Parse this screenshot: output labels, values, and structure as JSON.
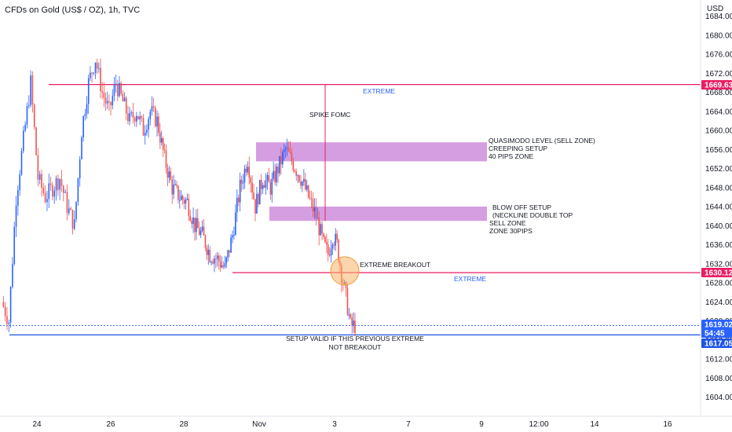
{
  "header": {
    "title": "CFDs on Gold (US$ / OZ), 1h, TVC",
    "currency": "USD"
  },
  "colors": {
    "up": "#2962ff",
    "down": "#ef5350",
    "extreme_line": "#e91e63",
    "support_line": "#1e53e5",
    "zone_fill": "#c77dd6",
    "circle_fill": "#f7b267"
  },
  "chart_data": {
    "type": "candlestick",
    "y_axis": {
      "ticks": [
        "1604.00",
        "1608.00",
        "1612.00",
        "1616.00",
        "1620.00",
        "1624.00",
        "1628.00",
        "1632.00",
        "1636.00",
        "1640.00",
        "1644.00",
        "1648.00",
        "1652.00",
        "1656.00",
        "1660.00",
        "1664.00",
        "1668.00",
        "1672.00",
        "1676.00",
        "1680.00",
        "1684.00"
      ],
      "range": [
        1602,
        1686
      ]
    },
    "x_axis": {
      "ticks": [
        "24",
        "26",
        "28",
        "Nov",
        "3",
        "7",
        "9",
        "12:00",
        "14",
        "16"
      ]
    },
    "price_path": [
      [
        "24",
        1624
      ],
      [
        "24",
        1620
      ],
      [
        "24",
        1646
      ],
      [
        "24",
        1658
      ],
      [
        "24",
        1670
      ],
      [
        "24",
        1650
      ],
      [
        "24",
        1646
      ],
      [
        "24",
        1648
      ],
      [
        "24",
        1650
      ],
      [
        "24",
        1644
      ],
      [
        "24",
        1640
      ],
      [
        "26",
        1660
      ],
      [
        "26",
        1670
      ],
      [
        "26",
        1675
      ],
      [
        "26",
        1668
      ],
      [
        "26",
        1664
      ],
      [
        "26",
        1670
      ],
      [
        "26",
        1666
      ],
      [
        "26",
        1662
      ],
      [
        "26",
        1664
      ],
      [
        "26",
        1660
      ],
      [
        "26",
        1664
      ],
      [
        "28",
        1662
      ],
      [
        "28",
        1654
      ],
      [
        "28",
        1648
      ],
      [
        "28",
        1646
      ],
      [
        "28",
        1645
      ],
      [
        "28",
        1640
      ],
      [
        "28",
        1638
      ],
      [
        "28",
        1634
      ],
      [
        "28",
        1633
      ],
      [
        "28",
        1631
      ],
      [
        "Nov",
        1638
      ],
      [
        "Nov",
        1648
      ],
      [
        "Nov",
        1654
      ],
      [
        "Nov",
        1644
      ],
      [
        "Nov",
        1650
      ],
      [
        "Nov",
        1648
      ],
      [
        "Nov",
        1652
      ],
      [
        "Nov",
        1656
      ],
      [
        "Nov",
        1653
      ],
      [
        "Nov",
        1650
      ],
      [
        "Nov",
        1646
      ],
      [
        "Nov",
        1642
      ],
      [
        "3",
        1636
      ],
      [
        "3",
        1634
      ],
      [
        "3",
        1638
      ],
      [
        "3",
        1636
      ],
      [
        "3",
        1630
      ],
      [
        "3",
        1625
      ],
      [
        "3",
        1619
      ]
    ],
    "horizontal_lines": [
      {
        "price": 1669.63,
        "label": "EXTREME",
        "color": "#e91e63"
      },
      {
        "price": 1630.12,
        "label": "EXTREME",
        "color": "#e91e63"
      },
      {
        "price": 1617.05,
        "color": "#1e53e5"
      },
      {
        "price": 1619.02,
        "color": "#2962ff",
        "style": "dotted"
      }
    ],
    "zones": [
      {
        "low": 1653.5,
        "high": 1657.5,
        "label_lines": [
          "QUASIMODO LEVEL (SELL ZONE)",
          "CREEPING SETUP",
          "40 PIPS ZONE"
        ]
      },
      {
        "low": 1641.0,
        "high": 1644.0,
        "label_lines": [
          "BLOW OFF SETUP",
          "(NECKLINE DOUBLE TOP",
          "SELL ZONE",
          "ZONE 30PIPS"
        ]
      }
    ],
    "annotations": {
      "spike": "SPIKE FOMC",
      "breakout": "EXTREME BREAKOUT",
      "setup_line1": "SETUP VALID IF THIS PREVIOUS EXTREME",
      "setup_line2": "NOT BREAKOUT"
    },
    "price_tags": [
      {
        "text": "1669.63",
        "price": 1669.63,
        "color": "#e91e63"
      },
      {
        "text": "1630.12",
        "price": 1630.12,
        "color": "#e91e63"
      },
      {
        "text": "1619.02",
        "price": 1619.02,
        "color": "#2962ff"
      },
      {
        "text": "54:45",
        "price": 1618.0,
        "color": "#2962ff"
      },
      {
        "text": "1617.05",
        "price": 1617.05,
        "color": "#1e53e5"
      }
    ]
  }
}
